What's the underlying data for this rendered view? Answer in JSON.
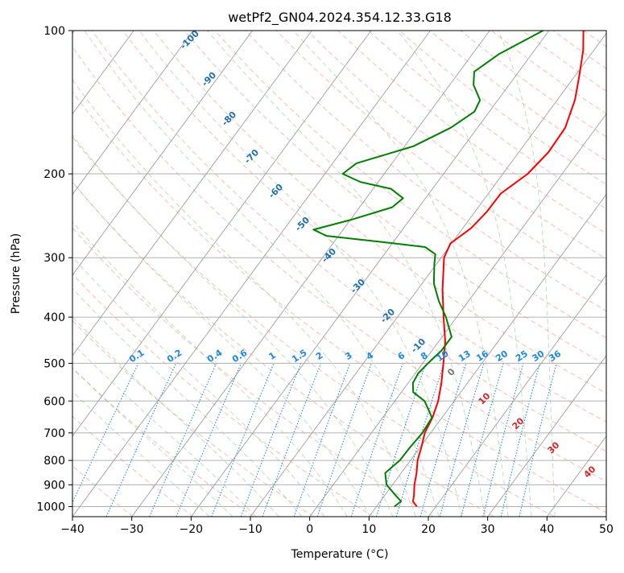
{
  "chart_data": {
    "type": "skew-t log-p",
    "title": "wetPf2_GN04.2024.354.12.33.G18",
    "xlabel": "Temperature (°C)",
    "ylabel": "Pressure (hPa)",
    "xlim": [
      -40,
      50
    ],
    "ylim_hpa": [
      1050,
      100
    ],
    "x_ticks": [
      "−40",
      "−30",
      "−20",
      "−10",
      "0",
      "10",
      "20",
      "30",
      "40",
      "50"
    ],
    "y_ticks": [
      "100",
      "200",
      "300",
      "400",
      "500",
      "600",
      "700",
      "800",
      "900",
      "1000"
    ],
    "grid": true,
    "series": [
      {
        "name": "",
        "color": "#ff0000",
        "description_key": "temperature",
        "points": [
          [
            1000,
            16.8
          ],
          [
            975,
            15.5
          ],
          [
            950,
            15.0
          ],
          [
            900,
            13.7
          ],
          [
            850,
            12.6
          ],
          [
            800,
            11.2
          ],
          [
            750,
            10.2
          ],
          [
            700,
            9.0
          ],
          [
            650,
            8.4
          ],
          [
            600,
            7.3
          ],
          [
            550,
            5.6
          ],
          [
            500,
            3.5
          ],
          [
            450,
            1.1
          ],
          [
            400,
            -2.2
          ],
          [
            350,
            -5.8
          ],
          [
            300,
            -9.5
          ],
          [
            280,
            -10.2
          ],
          [
            260,
            -8.6
          ],
          [
            240,
            -8.0
          ],
          [
            220,
            -7.9
          ],
          [
            200,
            -5.8
          ],
          [
            180,
            -5.0
          ],
          [
            160,
            -5.2
          ],
          [
            140,
            -7.0
          ],
          [
            125,
            -9.2
          ],
          [
            110,
            -11.8
          ],
          [
            100,
            -14.2
          ]
        ]
      },
      {
        "name": "",
        "color": "#008000",
        "description_key": "dewpoint",
        "points": [
          [
            1000,
            13.0
          ],
          [
            975,
            13.5
          ],
          [
            950,
            12.0
          ],
          [
            900,
            9.0
          ],
          [
            850,
            7.3
          ],
          [
            800,
            8.2
          ],
          [
            750,
            8.3
          ],
          [
            700,
            8.6
          ],
          [
            650,
            8.3
          ],
          [
            600,
            5.0
          ],
          [
            575,
            2.0
          ],
          [
            550,
            0.8
          ],
          [
            525,
            0.5
          ],
          [
            500,
            0.9
          ],
          [
            470,
            1.6
          ],
          [
            440,
            1.6
          ],
          [
            400,
            -1.8
          ],
          [
            370,
            -5.0
          ],
          [
            340,
            -8.0
          ],
          [
            310,
            -10.3
          ],
          [
            295,
            -11.4
          ],
          [
            285,
            -14.0
          ],
          [
            278,
            -22.0
          ],
          [
            270,
            -32.0
          ],
          [
            262,
            -35.0
          ],
          [
            250,
            -30.0
          ],
          [
            235,
            -24.5
          ],
          [
            225,
            -23.8
          ],
          [
            215,
            -27.0
          ],
          [
            208,
            -33.0
          ],
          [
            200,
            -37.0
          ],
          [
            190,
            -36.0
          ],
          [
            175,
            -28.5
          ],
          [
            160,
            -24.5
          ],
          [
            148,
            -22.5
          ],
          [
            140,
            -23.0
          ],
          [
            130,
            -26.0
          ],
          [
            122,
            -27.5
          ],
          [
            112,
            -25.5
          ],
          [
            100,
            -21.0
          ]
        ]
      }
    ],
    "dry_adiabat_labels": [
      "-100",
      "-90",
      "-80",
      "-70",
      "-60",
      "-50",
      "-40",
      "-30",
      "-20",
      "-10"
    ],
    "mixing_ratio_labels": [
      "0.1",
      "0.2",
      "0.4",
      "0.6",
      "1",
      "1.5",
      "2",
      "3",
      "4",
      "6",
      "8",
      "10",
      "13",
      "16",
      "20",
      "25",
      "30",
      "36"
    ],
    "moist_adiabat_labels": [
      "0",
      "10",
      "20",
      "30",
      "40"
    ],
    "colors": {
      "temperature": "#ff0000",
      "dewpoint": "#008000",
      "dry_adiabat_label": "#1f6fb2",
      "mixing_ratio": "#1e88e5",
      "moist_adiabat_label_zero": "#777777",
      "moist_adiabat_label": "#d62728",
      "isotherm": "#999999"
    }
  }
}
